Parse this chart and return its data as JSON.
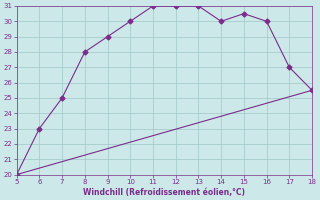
{
  "line1_x": [
    5,
    6,
    7,
    8,
    9,
    10,
    11,
    12,
    13,
    14,
    15,
    16,
    17,
    18
  ],
  "line1_y": [
    20,
    23,
    25,
    28,
    29,
    30,
    31,
    31,
    31,
    30,
    30.5,
    30,
    27,
    25.5
  ],
  "line2_x": [
    5,
    18
  ],
  "line2_y": [
    20,
    25.5
  ],
  "line_color": "#7b2d8b",
  "bg_color": "#cce8e8",
  "grid_color": "#a0c8c8",
  "xlabel": "Windchill (Refroidissement éolien,°C)",
  "xlim": [
    5,
    18
  ],
  "ylim": [
    20,
    31
  ],
  "xticks": [
    5,
    6,
    7,
    8,
    9,
    10,
    11,
    12,
    13,
    14,
    15,
    16,
    17,
    18
  ],
  "yticks": [
    20,
    21,
    22,
    23,
    24,
    25,
    26,
    27,
    28,
    29,
    30,
    31
  ],
  "tick_color": "#7b2d8b",
  "xlabel_color": "#7b2d8b",
  "marker": "D",
  "markersize": 2.5,
  "linewidth": 0.8
}
